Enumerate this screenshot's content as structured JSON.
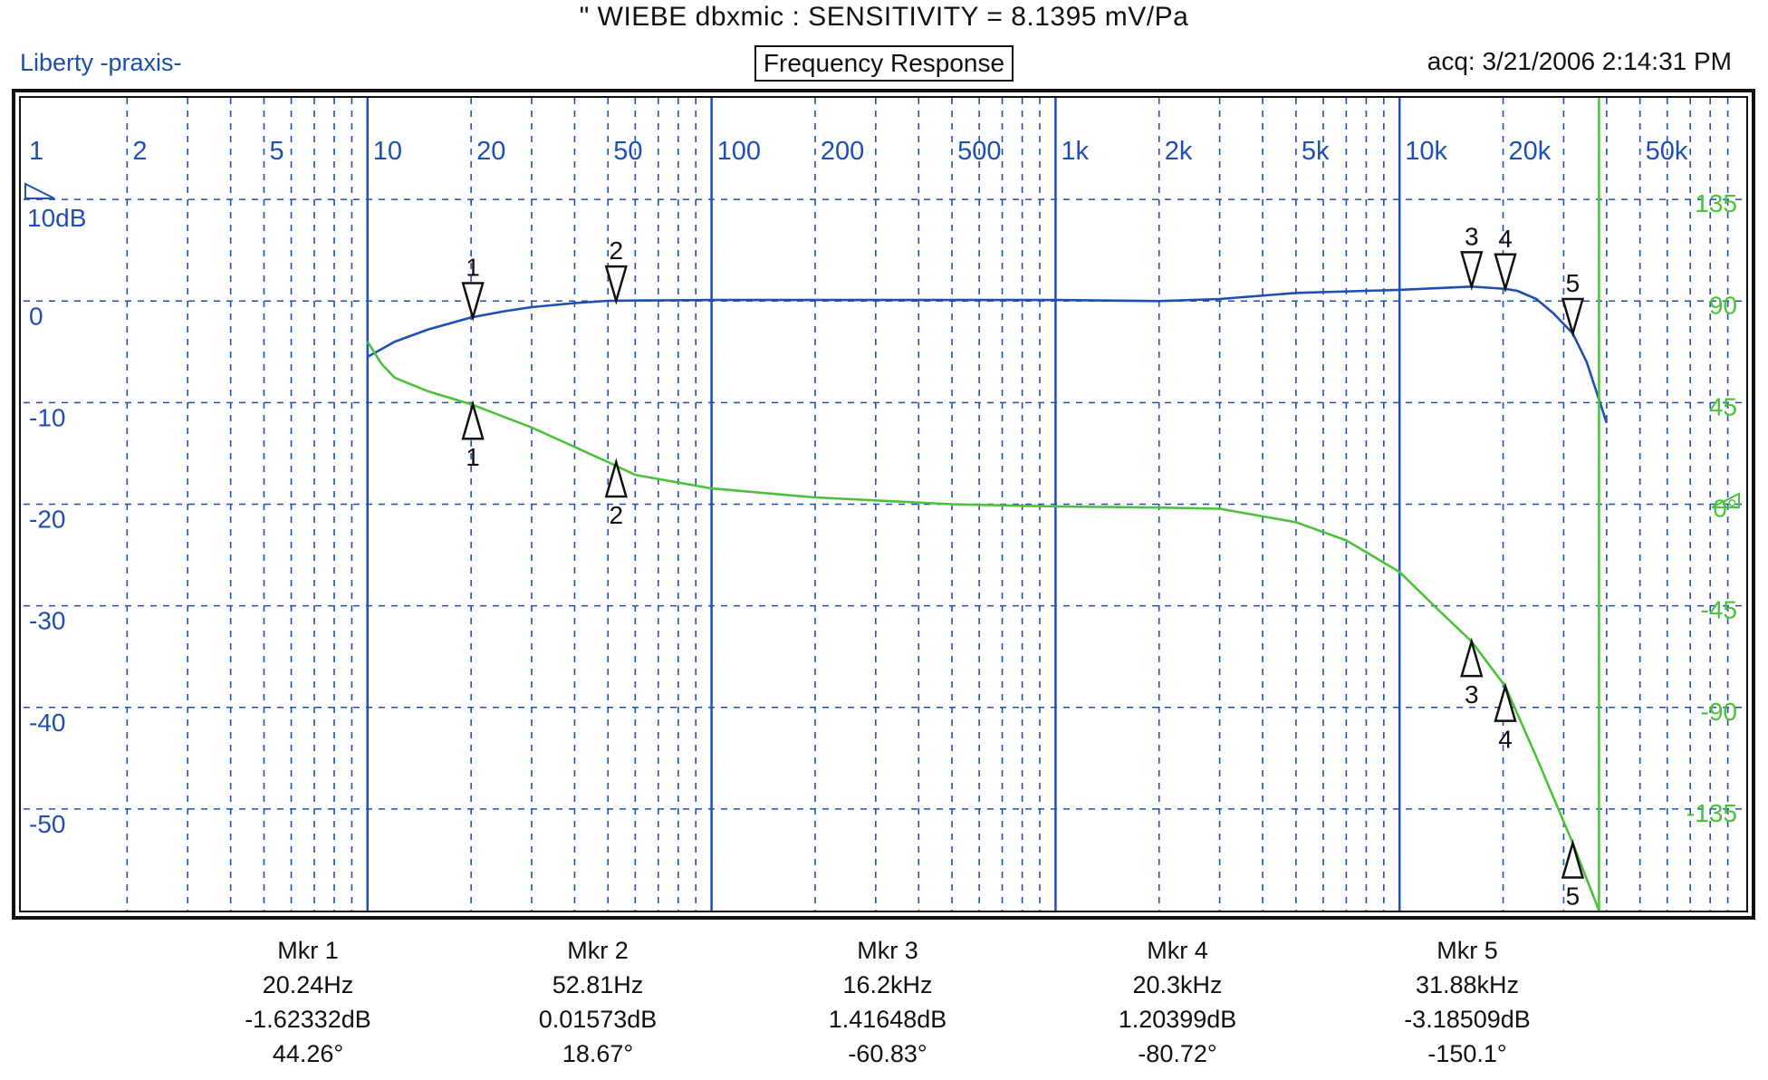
{
  "header": {
    "top_title": "\" WIEBE dbxmic : SENSITIVITY = 8.1395 mV/Pa",
    "brand": "Liberty -praxis-",
    "plot_title": "Frequency Response",
    "acq": "acq: 3/21/2006 2:14:31 PM"
  },
  "chart_data": {
    "type": "line",
    "title": "Frequency Response",
    "x_scale": "log",
    "xlim": [
      1,
      100000
    ],
    "x_tick_labels": [
      "1",
      "2",
      "5",
      "10",
      "20",
      "50",
      "100",
      "200",
      "500",
      "1k",
      "2k",
      "5k",
      "10k",
      "20k",
      "50k"
    ],
    "x_tick_values": [
      1,
      2,
      5,
      10,
      20,
      50,
      100,
      200,
      500,
      1000,
      2000,
      5000,
      10000,
      20000,
      50000
    ],
    "left_axis": {
      "scale_label": "10dB",
      "ylim": [
        -60,
        20
      ],
      "tick_values": [
        0,
        -10,
        -20,
        -30,
        -40,
        -50
      ],
      "tick_labels": [
        "0",
        "-10",
        "-20",
        "-30",
        "-40",
        "-50"
      ]
    },
    "right_axis": {
      "ylim": [
        -180,
        180
      ],
      "tick_values": [
        135,
        90,
        45,
        0,
        -45,
        -90,
        -135
      ],
      "tick_labels": [
        "135",
        "90",
        "45",
        "0°",
        "-45",
        "-90",
        "-135"
      ]
    },
    "grid": true,
    "colors": {
      "magnitude": "#1f4fb5",
      "phase": "#4cc23a",
      "grid": "#1f4fb5",
      "cursor": "#4cc23a"
    },
    "cursor_x": 38000,
    "series": [
      {
        "axis": "left",
        "x": [
          10,
          12,
          15,
          20,
          25,
          30,
          40,
          50,
          60,
          100,
          200,
          500,
          1000,
          2000,
          3000,
          5000,
          10000,
          16200,
          20300,
          22000,
          25000,
          28000,
          31880,
          35000,
          40000
        ],
        "values": [
          -5.5,
          -4.0,
          -2.8,
          -1.62,
          -1.0,
          -0.6,
          -0.2,
          0.02,
          0.05,
          0.1,
          0.1,
          0.1,
          0.1,
          0.0,
          0.2,
          0.8,
          1.1,
          1.42,
          1.2,
          1.0,
          0.2,
          -1.2,
          -3.19,
          -6.0,
          -12.0
        ]
      },
      {
        "axis": "right",
        "x": [
          10,
          11,
          12,
          15,
          20,
          30,
          50,
          60,
          100,
          200,
          500,
          1000,
          2000,
          3000,
          5000,
          7000,
          10000,
          13000,
          16200,
          20300,
          25000,
          31880,
          38000
        ],
        "values": [
          72,
          62,
          56,
          50,
          44.26,
          34,
          18.67,
          13,
          7,
          3,
          0,
          -1,
          -1.5,
          -2,
          -8,
          -16,
          -30,
          -47,
          -60.83,
          -80.72,
          -112,
          -150.1,
          -180
        ]
      }
    ],
    "markers": [
      {
        "id": "1",
        "x": 20.24,
        "db": -1.62332,
        "phase": 44.26
      },
      {
        "id": "2",
        "x": 52.81,
        "db": 0.01573,
        "phase": 18.67
      },
      {
        "id": "3",
        "x": 16200,
        "db": 1.41648,
        "phase": -60.83
      },
      {
        "id": "4",
        "x": 20300,
        "db": 1.20399,
        "phase": -80.72
      },
      {
        "id": "5",
        "x": 31880,
        "db": -3.18509,
        "phase": -150.1
      }
    ],
    "marker_table": [
      {
        "name": "Mkr 1",
        "freq": "20.24Hz",
        "level": "-1.62332dB",
        "phase": "44.26°"
      },
      {
        "name": "Mkr 2",
        "freq": "52.81Hz",
        "level": "0.01573dB",
        "phase": "18.67°"
      },
      {
        "name": "Mkr 3",
        "freq": "16.2kHz",
        "level": "1.41648dB",
        "phase": "-60.83°"
      },
      {
        "name": "Mkr 4",
        "freq": "20.3kHz",
        "level": "1.20399dB",
        "phase": "-80.72°"
      },
      {
        "name": "Mkr 5",
        "freq": "31.88kHz",
        "level": "-3.18509dB",
        "phase": "-150.1°"
      }
    ]
  }
}
